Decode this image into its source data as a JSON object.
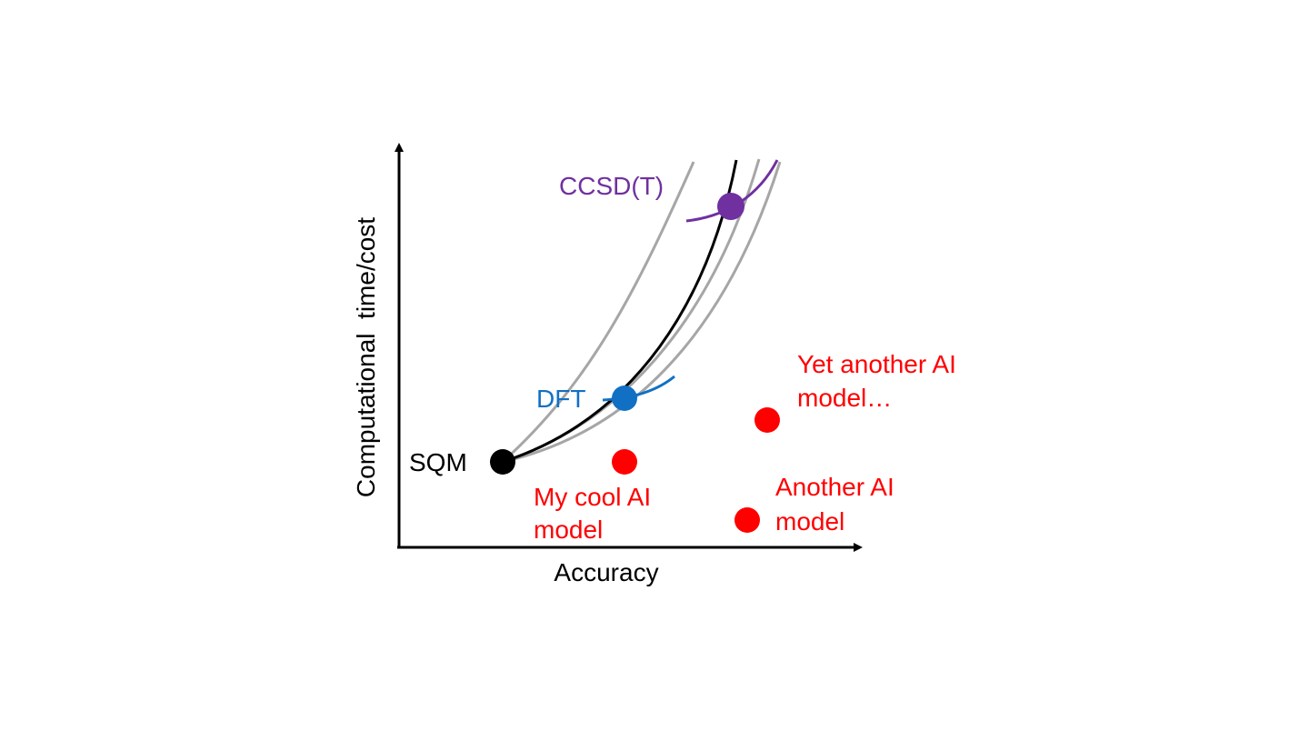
{
  "axes": {
    "x_label": "Accuracy",
    "y_label": "Computational  time/cost"
  },
  "methods": [
    {
      "id": "sqm",
      "label": "SQM",
      "color": "#000000"
    },
    {
      "id": "dft",
      "label": "DFT",
      "color": "#1170c4"
    },
    {
      "id": "ccsdt",
      "label": "CCSD(T)",
      "color": "#7030a0"
    }
  ],
  "ai_models": [
    {
      "id": "my-cool",
      "lines": [
        "My cool AI",
        "model"
      ],
      "color": "#ff0000"
    },
    {
      "id": "another",
      "lines": [
        "Another AI",
        "model"
      ],
      "color": "#ff0000"
    },
    {
      "id": "yet-another",
      "lines": [
        "Yet another AI",
        "model…"
      ],
      "color": "#ff0000"
    }
  ],
  "colors": {
    "axis": "#000000",
    "main_curve": "#000000",
    "alt_curves": "#a6a6a6",
    "ai_points": "#ff0000"
  }
}
